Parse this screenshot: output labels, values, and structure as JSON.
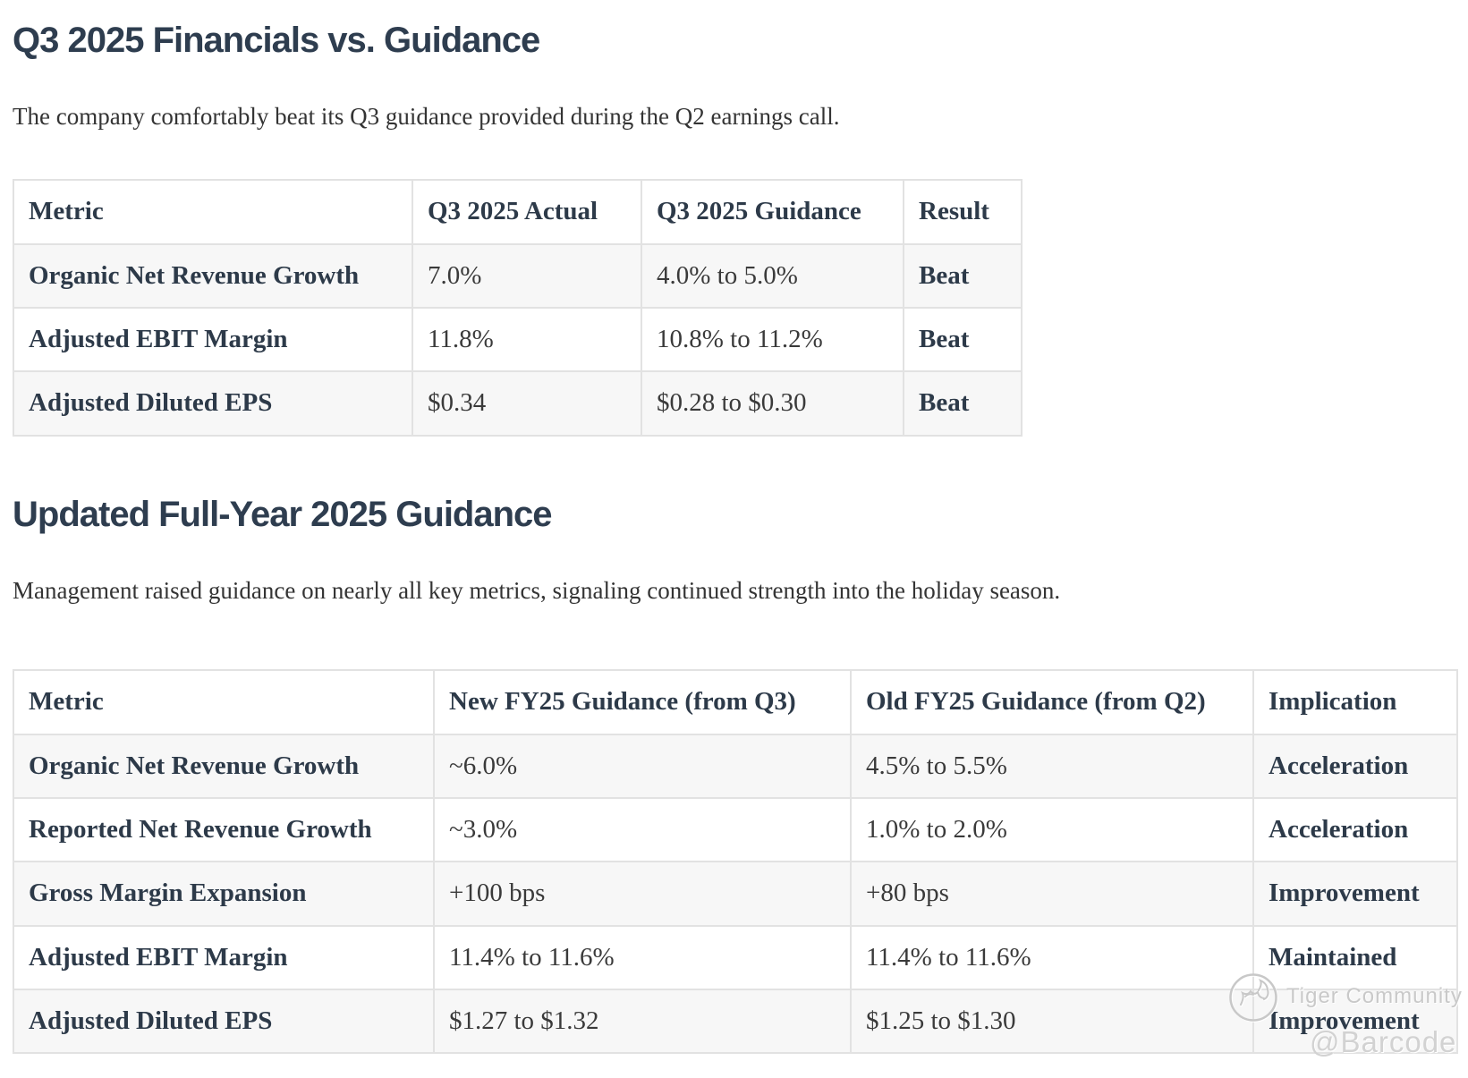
{
  "section1": {
    "heading": "Q3 2025 Financials vs. Guidance",
    "intro": "The company comfortably beat its Q3 guidance provided during the Q2 earnings call.",
    "table": {
      "columns": [
        "Metric",
        "Q3 2025 Actual",
        "Q3 2025 Guidance",
        "Result"
      ],
      "rows": [
        {
          "metric": "Organic Net Revenue Growth",
          "actual": "7.0%",
          "guidance": "4.0% to 5.0%",
          "result": "Beat"
        },
        {
          "metric": "Adjusted EBIT Margin",
          "actual": "11.8%",
          "guidance": "10.8% to 11.2%",
          "result": "Beat"
        },
        {
          "metric": "Adjusted Diluted EPS",
          "actual": "$0.34",
          "guidance": "$0.28 to $0.30",
          "result": "Beat"
        }
      ]
    }
  },
  "section2": {
    "heading": "Updated Full-Year 2025 Guidance",
    "intro": "Management raised guidance on nearly all key metrics, signaling continued strength into the holiday season.",
    "table": {
      "columns": [
        "Metric",
        "New FY25 Guidance (from Q3)",
        "Old FY25 Guidance (from Q2)",
        "Implication"
      ],
      "rows": [
        {
          "metric": "Organic Net Revenue Growth",
          "new": "~6.0%",
          "old": "4.5% to 5.5%",
          "implication": "Acceleration"
        },
        {
          "metric": "Reported Net Revenue Growth",
          "new": "~3.0%",
          "old": "1.0% to 2.0%",
          "implication": "Acceleration"
        },
        {
          "metric": "Gross Margin Expansion",
          "new": "+100 bps",
          "old": "+80 bps",
          "implication": "Improvement"
        },
        {
          "metric": "Adjusted EBIT Margin",
          "new": "11.4% to 11.6%",
          "old": "11.4% to 11.6%",
          "implication": "Maintained"
        },
        {
          "metric": "Adjusted Diluted EPS",
          "new": "$1.27 to $1.32",
          "old": "$1.25 to $1.30",
          "implication": "Improvement"
        }
      ]
    }
  },
  "watermark": {
    "community": "Tiger Community",
    "handle": "@Barcode",
    "logo": "tiger-logo-icon"
  },
  "colors": {
    "heading": "#2e3d4f",
    "table_bold_text": "#2d3a49",
    "table_value_text": "#3a3a3a",
    "table_border": "#e2e2e2",
    "zebra_row": "#f7f7f7",
    "watermark": "#c9c9c9",
    "background": "#ffffff"
  }
}
